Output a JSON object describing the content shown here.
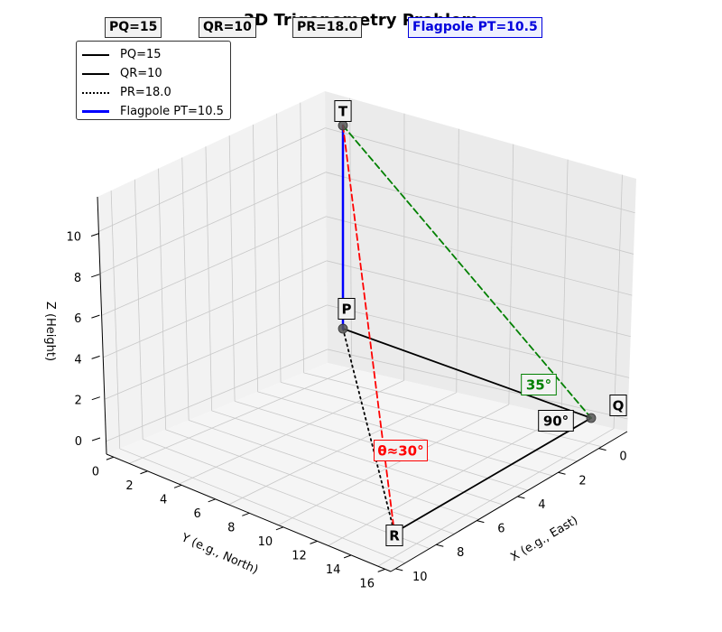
{
  "title": "3D Trigonometry Problem",
  "info_boxes": [
    {
      "text": "PQ=15",
      "color": "#000000",
      "bg": "#f2f2f2",
      "border": "#333333"
    },
    {
      "text": "QR=10",
      "color": "#000000",
      "bg": "#f2f2f2",
      "border": "#333333"
    },
    {
      "text": "PR=18.0",
      "color": "#000000",
      "bg": "#f2f2f2",
      "border": "#333333"
    },
    {
      "text": "Flagpole PT=10.5",
      "color": "#0000dd",
      "bg": "#eef0ff",
      "border": "#0000dd"
    }
  ],
  "legend": [
    {
      "label": "PQ=15",
      "color": "#000000",
      "style": "solid"
    },
    {
      "label": "QR=10",
      "color": "#000000",
      "style": "solid"
    },
    {
      "label": "PR=18.0",
      "color": "#000000",
      "style": "dotted"
    },
    {
      "label": "Flagpole PT=10.5",
      "color": "#0000ff",
      "style": "solid"
    }
  ],
  "chart_data": {
    "type": "line",
    "projection": "3d",
    "title": "3D Trigonometry Problem",
    "xlabel": "X (e.g., East)",
    "ylabel": "Y (e.g., North)",
    "zlabel": "Z (Height)",
    "xlim": [
      0,
      10
    ],
    "ylim": [
      0,
      16
    ],
    "zlim": [
      0,
      10.5
    ],
    "xticks": [
      0,
      2,
      4,
      6,
      8,
      10
    ],
    "yticks": [
      0,
      2,
      4,
      6,
      8,
      10,
      12,
      14,
      16
    ],
    "zticks": [
      0,
      2,
      4,
      6,
      8,
      10
    ],
    "grid": true,
    "legend_position": "upper-left",
    "points": [
      {
        "label": "P",
        "x": 0,
        "y": 0,
        "z": 0
      },
      {
        "label": "Q",
        "x": 0,
        "y": 15,
        "z": 0
      },
      {
        "label": "R",
        "x": 10,
        "y": 15,
        "z": 0
      },
      {
        "label": "T",
        "x": 0,
        "y": 0,
        "z": 10.5
      }
    ],
    "segments": [
      {
        "name": "PQ=15",
        "from": "P",
        "to": "Q",
        "color": "#000000",
        "style": "solid"
      },
      {
        "name": "QR=10",
        "from": "Q",
        "to": "R",
        "color": "#000000",
        "style": "solid"
      },
      {
        "name": "PR=18.0",
        "from": "P",
        "to": "R",
        "color": "#000000",
        "style": "dotted"
      },
      {
        "name": "Flagpole PT=10.5",
        "from": "P",
        "to": "T",
        "color": "#0000ff",
        "style": "solid"
      },
      {
        "from": "T",
        "to": "Q",
        "color": "#008000",
        "style": "dashed"
      },
      {
        "from": "T",
        "to": "R",
        "color": "#ff0000",
        "style": "dashed"
      }
    ],
    "annotations": [
      {
        "text": "35°",
        "color": "#008000",
        "border": "#008000"
      },
      {
        "text": "90°",
        "color": "#000000",
        "border": "#000000"
      },
      {
        "text": "θ≈30°",
        "color": "#ff0000",
        "border": "#ff0000"
      }
    ]
  }
}
